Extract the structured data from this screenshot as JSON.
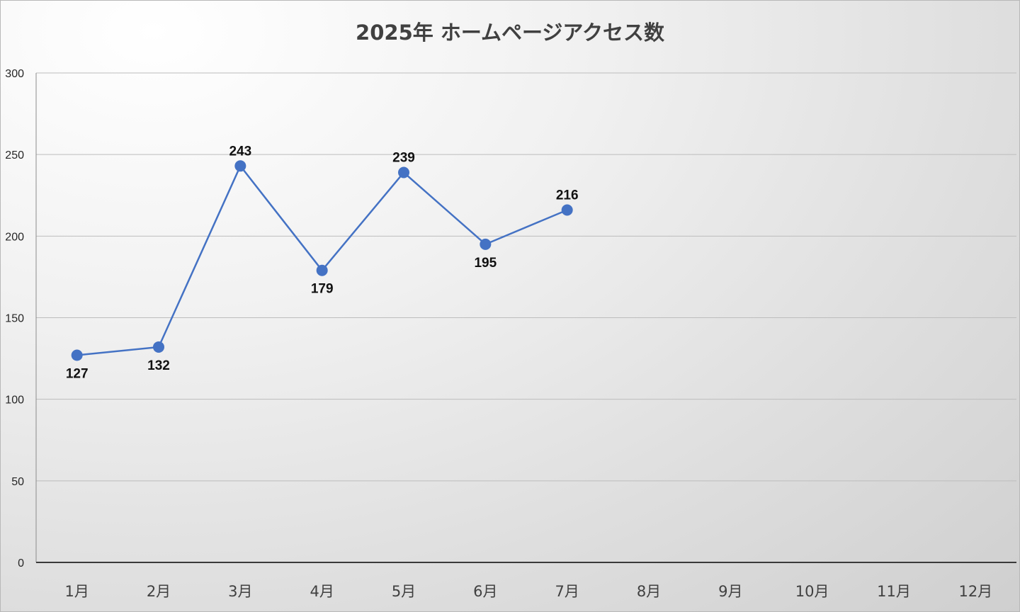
{
  "chart_data": {
    "type": "line",
    "title": "2025年 ホームページアクセス数",
    "xlabel": "",
    "ylabel": "",
    "categories": [
      "1月",
      "2月",
      "3月",
      "4月",
      "5月",
      "6月",
      "7月",
      "8月",
      "9月",
      "10月",
      "11月",
      "12月"
    ],
    "series": [
      {
        "values": [
          127,
          132,
          243,
          179,
          239,
          195,
          216,
          null,
          null,
          null,
          null,
          null
        ],
        "color": "#4472C4",
        "label_positions": [
          "below",
          "below",
          "above",
          "below",
          "above",
          "below",
          "above"
        ]
      }
    ],
    "ylim": [
      0,
      300
    ],
    "yticks": [
      0,
      50,
      100,
      150,
      200,
      250,
      300
    ],
    "grid": true,
    "legend": "none",
    "data_labels": true
  }
}
